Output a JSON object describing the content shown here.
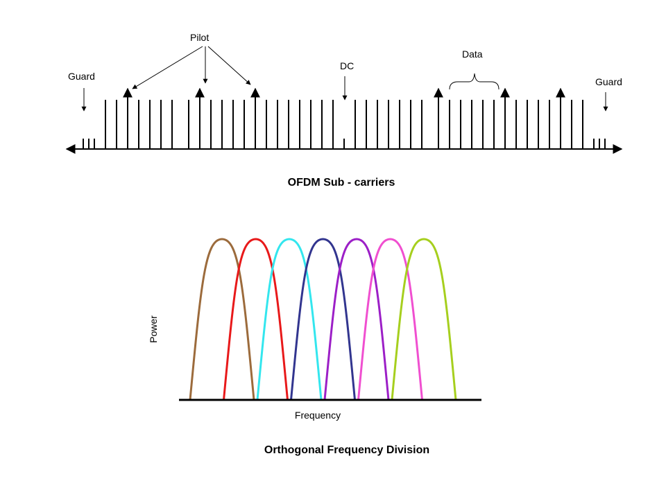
{
  "subcarrier_diagram": {
    "title": "OFDM Sub - carriers",
    "labels": {
      "guard_left": "Guard",
      "pilot": "Pilot",
      "dc": "DC",
      "data": "Data",
      "guard_right": "Guard"
    }
  },
  "spectrum_diagram": {
    "title": "Orthogonal Frequency Division",
    "xlabel": "Frequency",
    "ylabel": "Power",
    "curve_colors": [
      "#9c6b3c",
      "#e8191a",
      "#33e6ee",
      "#32358f",
      "#9c1fc7",
      "#f04fd0",
      "#a6cf1e"
    ]
  }
}
